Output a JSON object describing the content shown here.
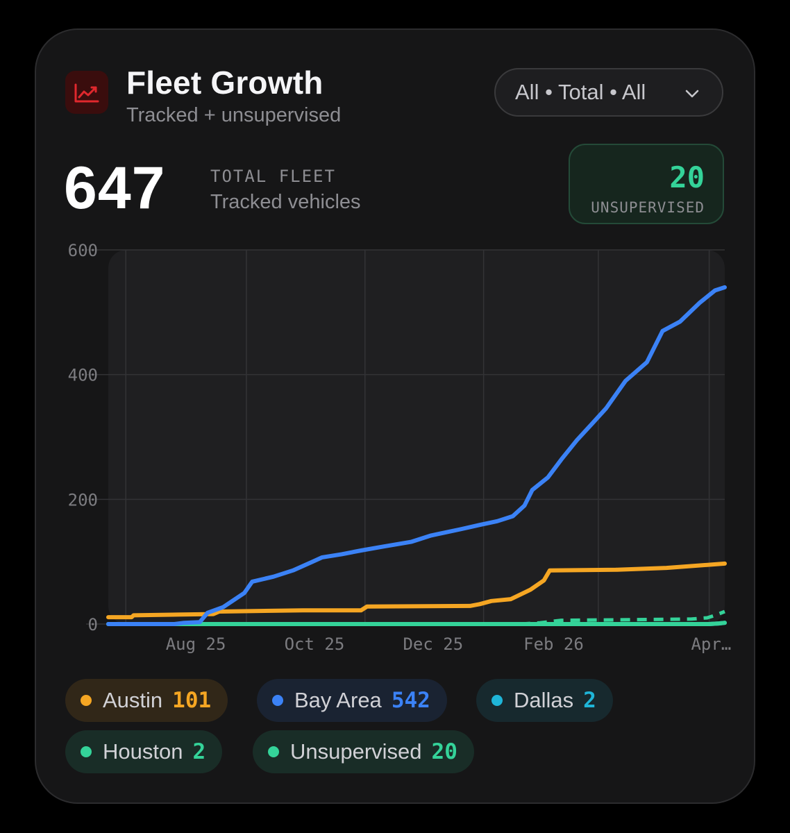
{
  "header": {
    "title": "Fleet Growth",
    "subtitle": "Tracked + unsupervised",
    "filter_label": "All • Total • All",
    "icon": "trend-chart-icon",
    "icon_color": "#e0282d"
  },
  "kpi": {
    "value": "647",
    "label": "TOTAL FLEET",
    "sublabel": "Tracked vehicles"
  },
  "unsupervised_box": {
    "value": "20",
    "label": "UNSUPERVISED"
  },
  "legend": [
    {
      "name": "Austin",
      "count": "101",
      "color": "#f5a623"
    },
    {
      "name": "Bay Area",
      "count": "542",
      "color": "#3b82f6"
    },
    {
      "name": "Dallas",
      "count": "2",
      "color": "#1fb5d8"
    },
    {
      "name": "Houston",
      "count": "2",
      "color": "#34d399"
    },
    {
      "name": "Unsupervised",
      "count": "20",
      "color": "#34d399"
    }
  ],
  "chart_data": {
    "type": "line",
    "x_ticks": [
      "Aug 25",
      "Oct 25",
      "Dec 25",
      "Feb 26",
      "Apr…"
    ],
    "ylim": [
      0,
      600
    ],
    "y_ticks": [
      0,
      200,
      400,
      600
    ],
    "grid": true,
    "series": [
      {
        "name": "Bay Area",
        "color": "#3b82f6",
        "dash": false,
        "points": [
          [
            "2025-06-22",
            0
          ],
          [
            "2025-07-26",
            0
          ],
          [
            "2025-07-31",
            2
          ],
          [
            "2025-08-08",
            3
          ],
          [
            "2025-08-12",
            18
          ],
          [
            "2025-08-20",
            27
          ],
          [
            "2025-08-31",
            50
          ],
          [
            "2025-09-04",
            68
          ],
          [
            "2025-09-15",
            76
          ],
          [
            "2025-09-25",
            86
          ],
          [
            "2025-10-05",
            100
          ],
          [
            "2025-10-10",
            107
          ],
          [
            "2025-10-20",
            112
          ],
          [
            "2025-10-30",
            118
          ],
          [
            "2025-11-10",
            124
          ],
          [
            "2025-11-25",
            132
          ],
          [
            "2025-12-05",
            142
          ],
          [
            "2025-12-20",
            152
          ],
          [
            "2025-12-30",
            159
          ],
          [
            "2026-01-08",
            165
          ],
          [
            "2026-01-16",
            173
          ],
          [
            "2026-01-22",
            190
          ],
          [
            "2026-01-26",
            215
          ],
          [
            "2026-02-03",
            235
          ],
          [
            "2026-02-10",
            264
          ],
          [
            "2026-02-18",
            295
          ],
          [
            "2026-02-26",
            322
          ],
          [
            "2026-03-05",
            346
          ],
          [
            "2026-03-15",
            390
          ],
          [
            "2026-03-26",
            420
          ],
          [
            "2026-04-03",
            470
          ],
          [
            "2026-04-12",
            485
          ],
          [
            "2026-04-22",
            515
          ],
          [
            "2026-04-30",
            535
          ],
          [
            "2026-05-05",
            540
          ]
        ]
      },
      {
        "name": "Austin",
        "color": "#f5a623",
        "dash": false,
        "points": [
          [
            "2025-06-22",
            11
          ],
          [
            "2025-07-04",
            11
          ],
          [
            "2025-07-05",
            14
          ],
          [
            "2025-07-25",
            15
          ],
          [
            "2025-08-15",
            16
          ],
          [
            "2025-08-18",
            20
          ],
          [
            "2025-09-30",
            22
          ],
          [
            "2025-10-30",
            22
          ],
          [
            "2025-11-02",
            28
          ],
          [
            "2025-12-25",
            29
          ],
          [
            "2025-12-30",
            32
          ],
          [
            "2026-01-05",
            37
          ],
          [
            "2026-01-15",
            40
          ],
          [
            "2026-01-25",
            55
          ],
          [
            "2026-02-01",
            70
          ],
          [
            "2026-02-04",
            86
          ],
          [
            "2026-03-10",
            87
          ],
          [
            "2026-04-05",
            90
          ],
          [
            "2026-05-05",
            97
          ]
        ]
      },
      {
        "name": "Dallas",
        "color": "#1fb5d8",
        "dash": false,
        "points": [
          [
            "2025-06-22",
            0
          ],
          [
            "2026-04-27",
            0
          ],
          [
            "2026-05-02",
            1
          ],
          [
            "2026-05-05",
            2
          ]
        ]
      },
      {
        "name": "Houston",
        "color": "#34d399",
        "dash": false,
        "points": [
          [
            "2025-06-22",
            0
          ],
          [
            "2026-04-27",
            0
          ],
          [
            "2026-05-02",
            1
          ],
          [
            "2026-05-05",
            2
          ]
        ]
      },
      {
        "name": "Unsupervised",
        "color": "#34d399",
        "dash": true,
        "points": [
          [
            "2026-01-20",
            0
          ],
          [
            "2026-01-30",
            2
          ],
          [
            "2026-02-10",
            6
          ],
          [
            "2026-03-20",
            7
          ],
          [
            "2026-04-18",
            8
          ],
          [
            "2026-04-26",
            10
          ],
          [
            "2026-04-30",
            14
          ],
          [
            "2026-05-05",
            20
          ]
        ]
      }
    ]
  }
}
